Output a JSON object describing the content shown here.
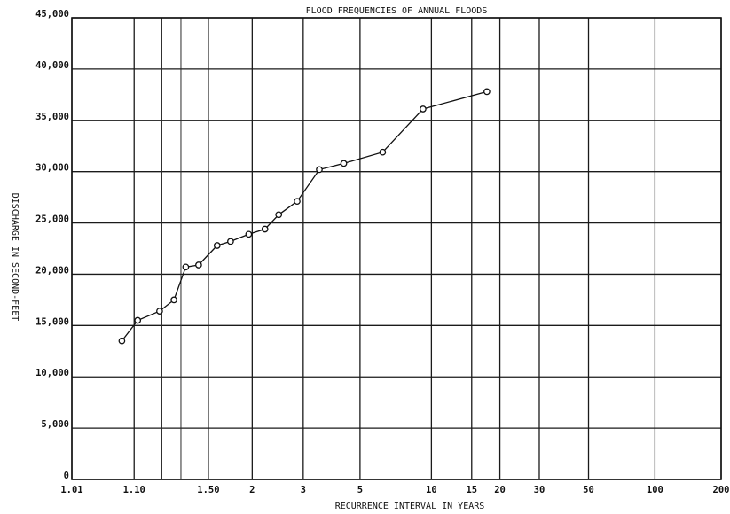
{
  "chart_data": {
    "type": "line",
    "title": "FLOOD FREQUENCIES OF ANNUAL FLOODS",
    "xlabel": "RECURRENCE INTERVAL IN YEARS",
    "ylabel": "DISCHARGE IN SECOND-FEET",
    "x_scale": "gumbel-probability",
    "x_tick_labels": [
      "1.01",
      "1.10",
      "1.50",
      "2",
      "3",
      "5",
      "10",
      "15",
      "20",
      "30",
      "50",
      "100",
      "200"
    ],
    "x_tick_values": [
      1.01,
      1.1,
      1.5,
      2,
      3,
      5,
      10,
      15,
      20,
      30,
      50,
      100,
      200
    ],
    "y_tick_labels": [
      "0",
      "5,000",
      "10,000",
      "15,000",
      "20,000",
      "25,000",
      "30,000",
      "35,000",
      "40,000",
      "45,000"
    ],
    "ylim": [
      0,
      45000
    ],
    "grid": true,
    "series": [
      {
        "x": [
          1.07,
          1.11,
          1.19,
          1.26,
          1.33,
          1.42,
          1.58,
          1.72,
          1.95,
          2.2,
          2.45,
          2.85,
          3.45,
          4.3,
          6.2,
          9.2,
          17.5
        ],
        "y": [
          13500,
          15500,
          16400,
          17500,
          20700,
          20900,
          22800,
          23200,
          23900,
          24400,
          25800,
          27100,
          30200,
          30800,
          31900,
          36100,
          37800
        ]
      }
    ]
  }
}
